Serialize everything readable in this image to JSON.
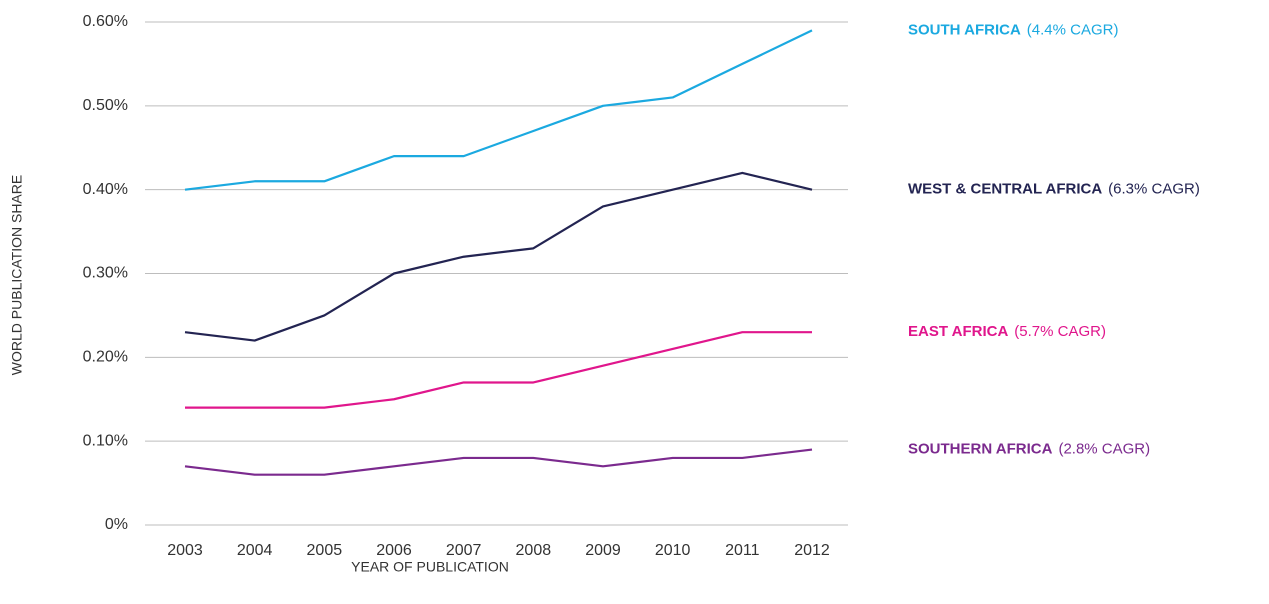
{
  "chart_data": {
    "type": "line",
    "x_label": "YEAR OF PUBLICATION",
    "y_label": "WORLD PUBLICATION SHARE",
    "categories": [
      "2003",
      "2004",
      "2005",
      "2006",
      "2007",
      "2008",
      "2009",
      "2010",
      "2011",
      "2012"
    ],
    "ylim": [
      0,
      0.6
    ],
    "yticks": [
      {
        "value": 0,
        "label": "0%"
      },
      {
        "value": 0.1,
        "label": "0.10%"
      },
      {
        "value": 0.2,
        "label": "0.20%"
      },
      {
        "value": 0.3,
        "label": "0.30%"
      },
      {
        "value": 0.4,
        "label": "0.40%"
      },
      {
        "value": 0.5,
        "label": "0.50%"
      },
      {
        "value": 0.6,
        "label": "0.60%"
      }
    ],
    "grid": true,
    "series": [
      {
        "name": "SOUTH AFRICA",
        "cagr": "(4.4% CAGR)",
        "color": "#1ba9e0",
        "values": [
          0.4,
          0.41,
          0.41,
          0.44,
          0.44,
          0.47,
          0.5,
          0.51,
          0.55,
          0.59
        ]
      },
      {
        "name": "WEST & CENTRAL AFRICA",
        "cagr": "(6.3% CAGR)",
        "color": "#232452",
        "values": [
          0.23,
          0.22,
          0.25,
          0.3,
          0.32,
          0.33,
          0.38,
          0.4,
          0.42,
          0.4
        ]
      },
      {
        "name": "EAST AFRICA",
        "cagr": "(5.7% CAGR)",
        "color": "#e0168c",
        "values": [
          0.14,
          0.14,
          0.14,
          0.15,
          0.17,
          0.17,
          0.19,
          0.21,
          0.23,
          0.23
        ]
      },
      {
        "name": "SOUTHERN AFRICA",
        "cagr": "(2.8% CAGR)",
        "color": "#7b2a8e",
        "values": [
          0.07,
          0.06,
          0.06,
          0.07,
          0.08,
          0.08,
          0.07,
          0.08,
          0.08,
          0.09
        ]
      }
    ]
  }
}
